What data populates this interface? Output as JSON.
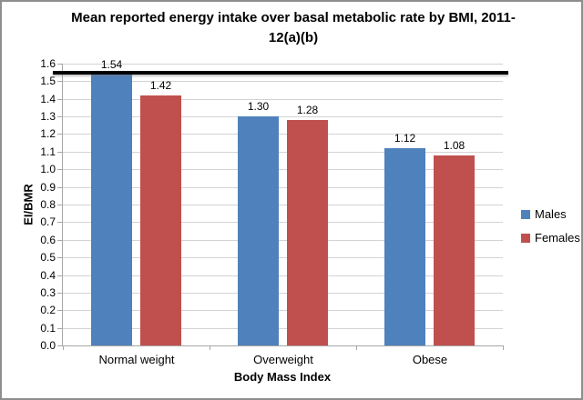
{
  "chart_data": {
    "type": "bar",
    "title": "Mean reported energy intake over basal metabolic rate by BMI, 2011-12(a)(b)",
    "categories": [
      "Normal weight",
      "Overweight",
      "Obese"
    ],
    "series": [
      {
        "name": "Males",
        "color": "#4F81BD",
        "values": [
          1.54,
          1.3,
          1.12
        ]
      },
      {
        "name": "Females",
        "color": "#C0504D",
        "values": [
          1.42,
          1.28,
          1.08
        ]
      }
    ],
    "data_labels": [
      [
        "1.54",
        "1.30",
        "1.12"
      ],
      [
        "1.42",
        "1.28",
        "1.08"
      ]
    ],
    "xlabel": "Body Mass Index",
    "ylabel": "EI/BMR",
    "ylim": [
      0.0,
      1.6
    ],
    "ytick_step": 0.1,
    "ytick_decimals": 1,
    "grid": true,
    "legend_position": "right",
    "reference_line": {
      "value": 1.55,
      "color": "#000000"
    },
    "colors": {
      "gridline": "#d3d3d3",
      "axis": "#a6a6a6",
      "frame_border": "#8e8e8e",
      "background": "#ffffff",
      "text": "#000000"
    }
  }
}
